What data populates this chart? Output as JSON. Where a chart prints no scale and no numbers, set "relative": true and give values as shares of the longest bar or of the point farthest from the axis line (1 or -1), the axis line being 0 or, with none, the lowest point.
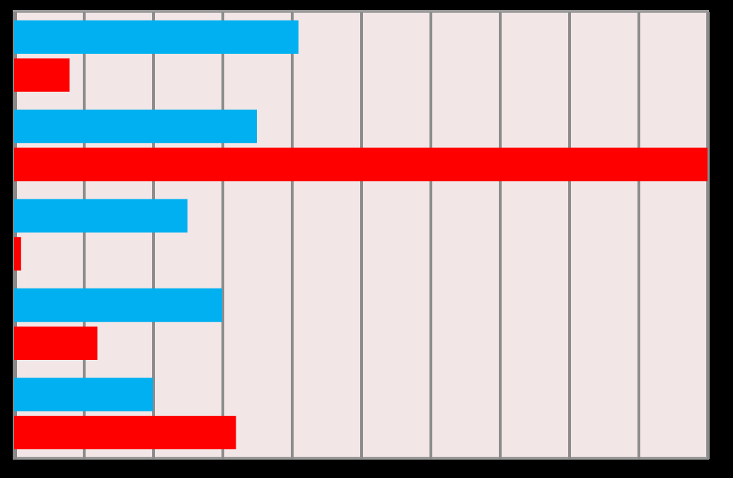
{
  "chart_data": {
    "type": "bar",
    "orientation": "horizontal",
    "relative": true,
    "grid": "x",
    "categories": [
      null,
      null,
      null,
      null,
      null
    ],
    "series": [
      {
        "color": "#00b0f0",
        "values": [
          0.41,
          0.35,
          0.25,
          0.3,
          0.2
        ]
      },
      {
        "color": "#ff0000",
        "values": [
          0.08,
          1,
          0.01,
          0.12,
          0.32
        ]
      }
    ]
  }
}
